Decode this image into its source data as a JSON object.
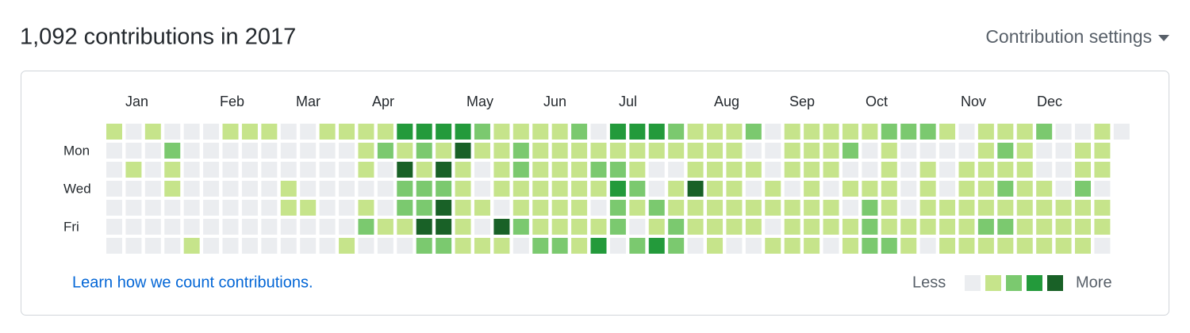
{
  "header": {
    "title": "1,092 contributions in 2017",
    "settings": "Contribution settings"
  },
  "calendar": {
    "months": [
      "Jan",
      "Feb",
      "Mar",
      "Apr",
      "May",
      "Jun",
      "Jul",
      "Aug",
      "Sep",
      "Oct",
      "Nov",
      "Dec"
    ],
    "day_labels": [
      "Mon",
      "Wed",
      "Fri"
    ],
    "level_colors": [
      "#ebedf0",
      "#c6e48b",
      "#7bc96f",
      "#239a3b",
      "#196127"
    ],
    "rows": [
      [
        1,
        0,
        1,
        0,
        0,
        0,
        1,
        1,
        1,
        0,
        0,
        1,
        1,
        1,
        1,
        3,
        3,
        3,
        3,
        2,
        1,
        1,
        1,
        1,
        2,
        0,
        3,
        3,
        3,
        2,
        1,
        1,
        1,
        2,
        0,
        1,
        1,
        1,
        1,
        1,
        2,
        2,
        2,
        1,
        0,
        1,
        1,
        1,
        2,
        0,
        0,
        1,
        0
      ],
      [
        0,
        0,
        0,
        2,
        0,
        0,
        0,
        0,
        0,
        0,
        0,
        0,
        0,
        1,
        2,
        1,
        2,
        1,
        4,
        1,
        1,
        2,
        1,
        1,
        1,
        1,
        1,
        1,
        1,
        1,
        1,
        1,
        1,
        0,
        0,
        1,
        1,
        1,
        2,
        0,
        1,
        0,
        0,
        0,
        0,
        1,
        2,
        1,
        0,
        0,
        1,
        1
      ],
      [
        0,
        1,
        0,
        1,
        0,
        0,
        0,
        0,
        0,
        0,
        0,
        0,
        0,
        1,
        0,
        4,
        1,
        4,
        1,
        0,
        1,
        2,
        1,
        1,
        1,
        2,
        2,
        1,
        0,
        0,
        1,
        1,
        1,
        1,
        0,
        1,
        1,
        1,
        0,
        0,
        1,
        0,
        1,
        0,
        1,
        1,
        1,
        1,
        0,
        0,
        1,
        1
      ],
      [
        0,
        0,
        0,
        1,
        0,
        0,
        0,
        0,
        0,
        1,
        0,
        0,
        0,
        0,
        0,
        2,
        2,
        2,
        1,
        0,
        1,
        1,
        1,
        1,
        1,
        1,
        3,
        2,
        0,
        1,
        4,
        1,
        1,
        0,
        1,
        0,
        1,
        0,
        1,
        1,
        1,
        0,
        1,
        0,
        1,
        1,
        2,
        1,
        1,
        0,
        2,
        0
      ],
      [
        0,
        0,
        0,
        0,
        0,
        0,
        0,
        0,
        0,
        1,
        1,
        0,
        0,
        1,
        0,
        2,
        2,
        4,
        1,
        1,
        0,
        1,
        1,
        1,
        1,
        0,
        2,
        1,
        2,
        1,
        1,
        1,
        1,
        1,
        1,
        1,
        1,
        1,
        0,
        2,
        1,
        0,
        1,
        1,
        1,
        1,
        1,
        1,
        1,
        1,
        1,
        1
      ],
      [
        0,
        0,
        0,
        0,
        0,
        0,
        0,
        0,
        0,
        0,
        0,
        0,
        0,
        2,
        1,
        1,
        4,
        4,
        1,
        0,
        4,
        2,
        1,
        1,
        1,
        1,
        2,
        0,
        1,
        2,
        1,
        1,
        1,
        1,
        0,
        1,
        1,
        1,
        1,
        2,
        1,
        1,
        1,
        1,
        1,
        2,
        2,
        1,
        1,
        1,
        1,
        1
      ],
      [
        0,
        0,
        0,
        0,
        1,
        0,
        0,
        0,
        0,
        0,
        0,
        0,
        1,
        0,
        0,
        0,
        2,
        2,
        1,
        1,
        1,
        0,
        2,
        2,
        1,
        3,
        0,
        2,
        3,
        2,
        0,
        1,
        0,
        0,
        1,
        1,
        1,
        0,
        1,
        2,
        2,
        1,
        0,
        1,
        1,
        1,
        1,
        1,
        1,
        1,
        1,
        0
      ]
    ],
    "link": "Learn how we count contributions.",
    "legend": {
      "less": "Less",
      "more": "More"
    }
  }
}
